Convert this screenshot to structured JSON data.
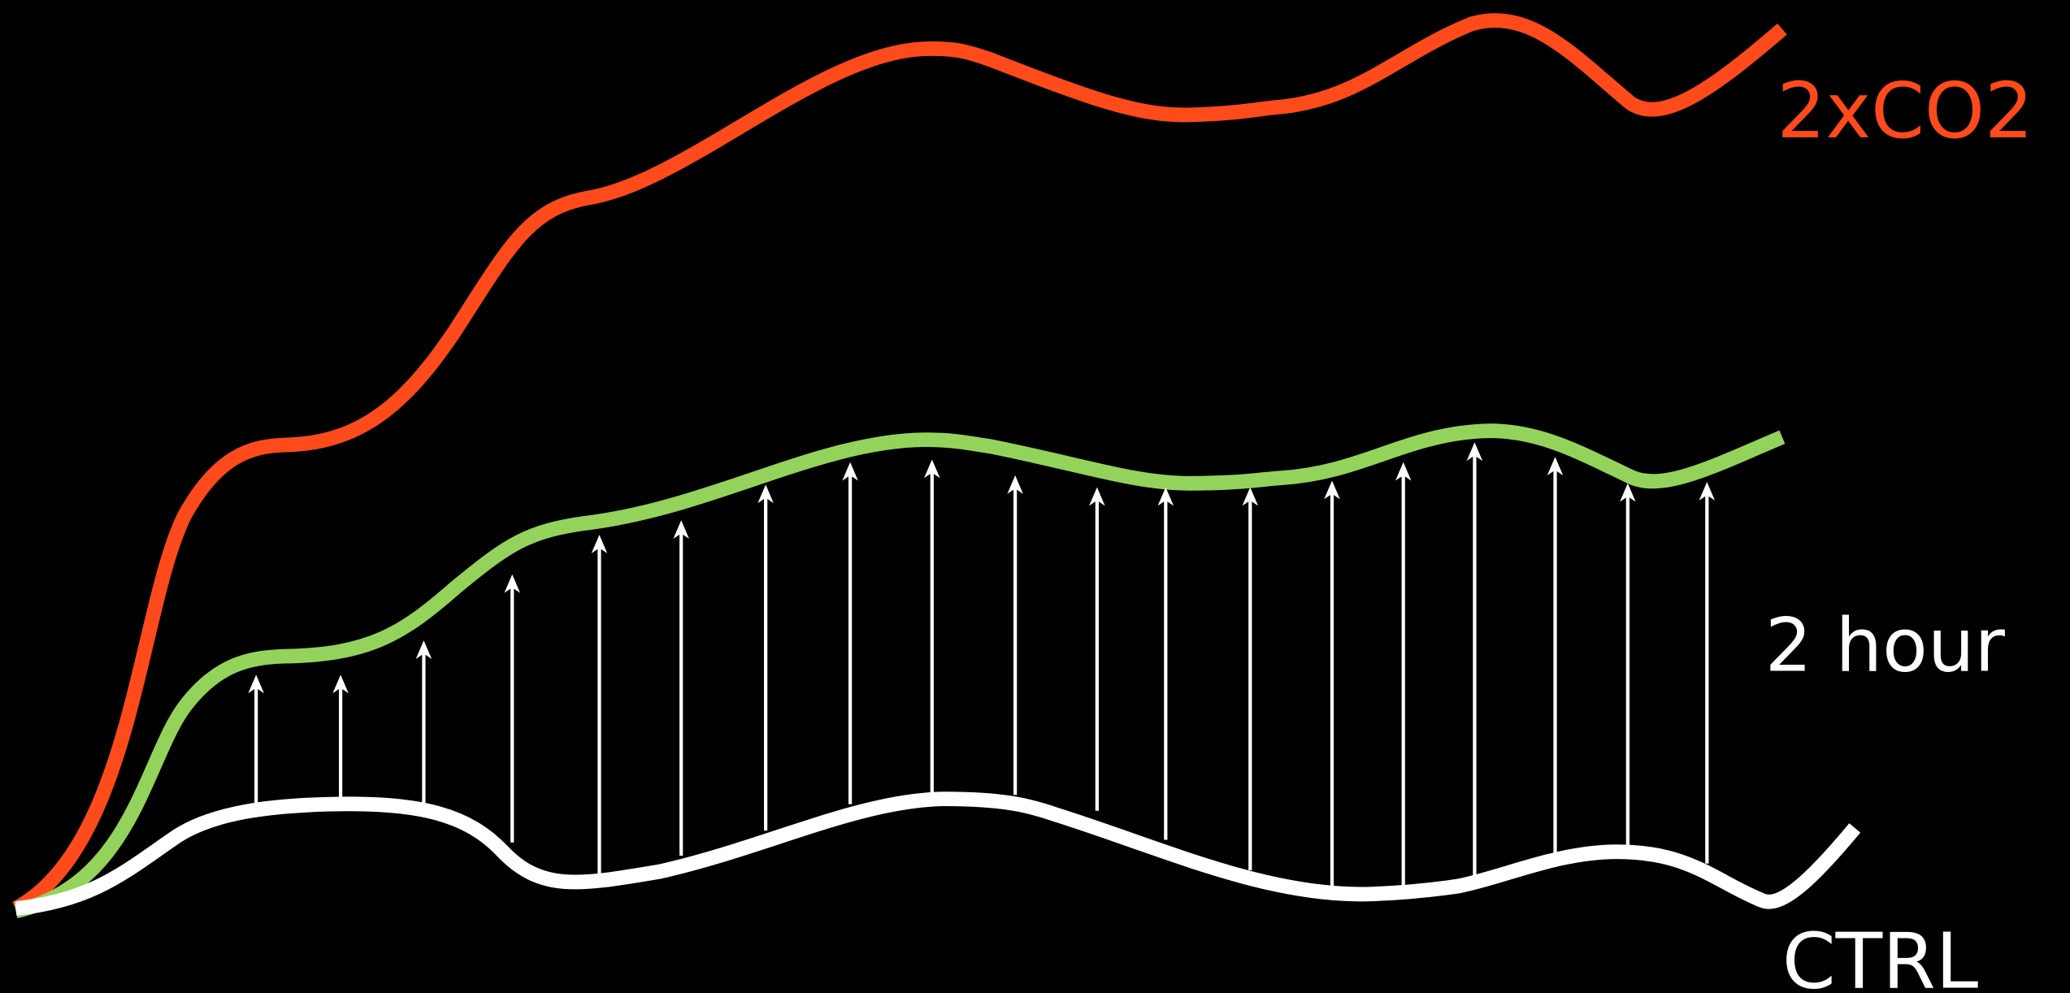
{
  "labels": {
    "forced": "2xCO2",
    "intermediate": "2 hour",
    "control": "CTRL"
  },
  "colors": {
    "background": "#000000",
    "forced": "#ff4a1c",
    "intermediate": "#93d35b",
    "control": "#ffffff",
    "arrows": "#ffffff"
  },
  "arrow_count": 18
}
